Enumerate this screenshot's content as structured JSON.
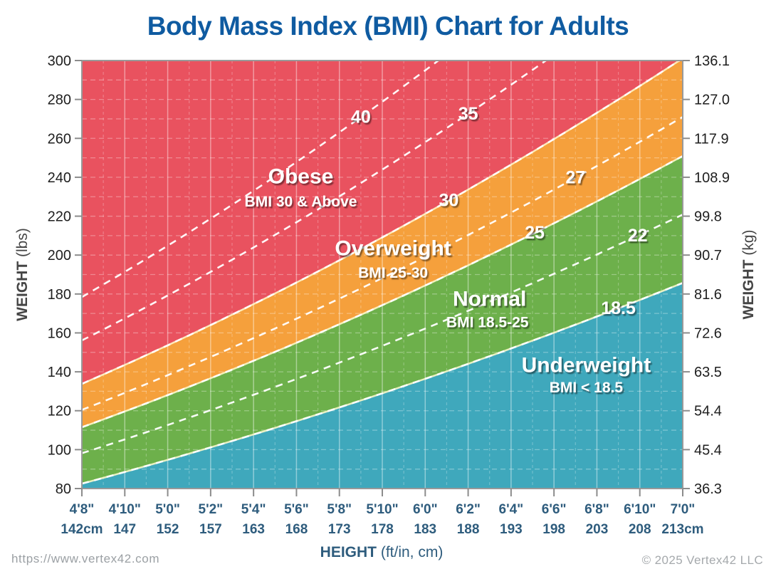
{
  "title": {
    "text": "Body Mass Index (BMI) Chart for Adults"
  },
  "colors": {
    "title": "#0F5BA1",
    "frame": "#999999",
    "tick": "#8C8C8C",
    "weight_text": "#1E1E1E",
    "height_text": "#2E5C7D",
    "axis_title_text": "#454545",
    "region_label_text": "#FFFFFF",
    "obese": "#E9525F",
    "overweight": "#F5A03C",
    "normal": "#6DB04B",
    "underweight": "#3FA8BC",
    "boundary_stroke": "rgba(255,252,205,0.85)",
    "bmi_line": "rgba(255,255,255,0.95)",
    "grid_line": "rgba(255,255,255,0.32)"
  },
  "axes": {
    "left": {
      "title": "WEIGHT",
      "unit": "(lbs)",
      "ticks": [
        80,
        100,
        120,
        140,
        160,
        180,
        200,
        220,
        240,
        260,
        280,
        300
      ]
    },
    "right": {
      "title": "WEIGHT",
      "unit": "(kg)",
      "ticks": [
        "36.3",
        "45.4",
        "54.4",
        "63.5",
        "72.6",
        "81.6",
        "90.7",
        "99.8",
        "108.9",
        "117.9",
        "127.0",
        "136.1"
      ]
    },
    "bottom": {
      "title": "HEIGHT",
      "unit": "(ft/in, cm)"
    }
  },
  "chart_data": {
    "type": "area",
    "title": "Body Mass Index (BMI) Chart for Adults",
    "xlabel": "HEIGHT (ft/in, cm)",
    "ylabel_left": "WEIGHT (lbs)",
    "ylabel_right": "WEIGHT (kg)",
    "x_range_inches": [
      56,
      84
    ],
    "y_range_lbs": [
      80,
      300
    ],
    "grid": {
      "x_step_inches": 1,
      "x_major_step_inches": 2,
      "y_step_lbs": 10,
      "y_tick_step_lbs": 20
    },
    "formula": "weight_lbs = BMI * height_in^2 / 703",
    "x_ticks": [
      {
        "ftin": "4'8\"",
        "cm": "142cm",
        "inches": 56
      },
      {
        "ftin": "4'10\"",
        "cm": "147",
        "inches": 58
      },
      {
        "ftin": "5'0\"",
        "cm": "152",
        "inches": 60
      },
      {
        "ftin": "5'2\"",
        "cm": "157",
        "inches": 62
      },
      {
        "ftin": "5'4\"",
        "cm": "163",
        "inches": 64
      },
      {
        "ftin": "5'6\"",
        "cm": "168",
        "inches": 66
      },
      {
        "ftin": "5'8\"",
        "cm": "173",
        "inches": 68
      },
      {
        "ftin": "5'10\"",
        "cm": "178",
        "inches": 70
      },
      {
        "ftin": "6'0\"",
        "cm": "183",
        "inches": 72
      },
      {
        "ftin": "6'2\"",
        "cm": "188",
        "inches": 74
      },
      {
        "ftin": "6'4\"",
        "cm": "193",
        "inches": 76
      },
      {
        "ftin": "6'6\"",
        "cm": "198",
        "inches": 78
      },
      {
        "ftin": "6'8\"",
        "cm": "203",
        "inches": 80
      },
      {
        "ftin": "6'10\"",
        "cm": "208",
        "inches": 82
      },
      {
        "ftin": "7'0\"",
        "cm": "213cm",
        "inches": 84
      }
    ],
    "regions": [
      {
        "name": "Underweight",
        "label": "Underweight",
        "sublabel": "BMI < 18.5",
        "bmi_min": null,
        "bmi_max": 18.5,
        "color": "#3FA8BC",
        "label_at": {
          "height_in": 79.5,
          "weight_lb": 143.5
        },
        "sublabel_at": {
          "height_in": 79.5,
          "weight_lb": 132.0
        }
      },
      {
        "name": "Normal",
        "label": "Normal",
        "sublabel": "BMI 18.5-25",
        "bmi_min": 18.5,
        "bmi_max": 25,
        "color": "#6DB04B",
        "label_at": {
          "height_in": 75.0,
          "weight_lb": 177.5
        },
        "sublabel_at": {
          "height_in": 74.9,
          "weight_lb": 165.5
        }
      },
      {
        "name": "Overweight",
        "label": "Overweight",
        "sublabel": "BMI 25-30",
        "bmi_min": 25,
        "bmi_max": 30,
        "color": "#F5A03C",
        "label_at": {
          "height_in": 70.5,
          "weight_lb": 203.5
        },
        "sublabel_at": {
          "height_in": 70.5,
          "weight_lb": 191.0
        }
      },
      {
        "name": "Obese",
        "label": "Obese",
        "sublabel": "BMI 30 & Above",
        "bmi_min": 30,
        "bmi_max": null,
        "color": "#E9525F",
        "label_at": {
          "height_in": 66.2,
          "weight_lb": 240.5
        },
        "sublabel_at": {
          "height_in": 66.2,
          "weight_lb": 227.5
        }
      }
    ],
    "bmi_lines": [
      {
        "bmi": 40,
        "label": "40",
        "label_at_height_in": 69.0
      },
      {
        "bmi": 35,
        "label": "35",
        "label_at_height_in": 74.0
      },
      {
        "bmi": 30,
        "label": "30",
        "label_at_height_in": 73.1
      },
      {
        "bmi": 27,
        "label": "27",
        "label_at_height_in": 79.0
      },
      {
        "bmi": 25,
        "label": "25",
        "label_at_height_in": 77.1
      },
      {
        "bmi": 22,
        "label": "22",
        "label_at_height_in": 81.9
      },
      {
        "bmi": 18.5,
        "label": "18.5",
        "label_at_height_in": 81.0
      }
    ]
  },
  "footer": {
    "left": "https://www.vertex42.com",
    "right": "© 2025 Vertex42 LLC"
  }
}
